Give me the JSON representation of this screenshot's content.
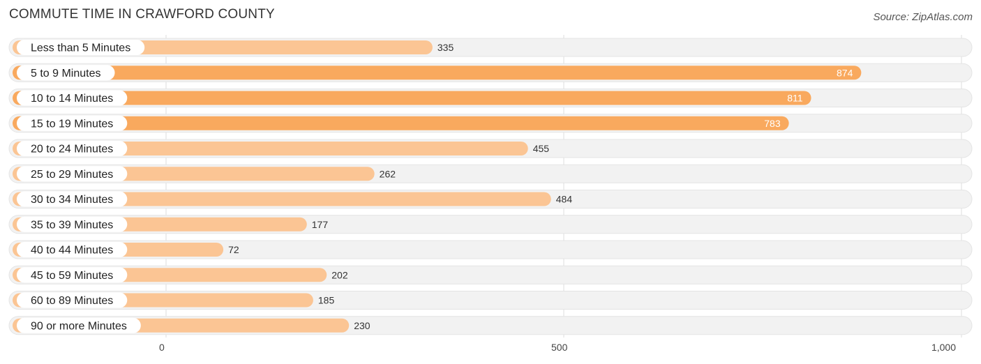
{
  "header": {
    "title": "COMMUTE TIME IN CRAWFORD COUNTY",
    "source": "Source: ZipAtlas.com"
  },
  "colors": {
    "bar_strong": "#f9a95e",
    "bar_light": "#fbc594",
    "row_background": "#f2f2f2",
    "grid": "#dddddd"
  },
  "chart_data": {
    "type": "bar",
    "orientation": "horizontal",
    "title": "COMMUTE TIME IN CRAWFORD COUNTY",
    "categories": [
      "Less than 5 Minutes",
      "5 to 9 Minutes",
      "10 to 14 Minutes",
      "15 to 19 Minutes",
      "20 to 24 Minutes",
      "25 to 29 Minutes",
      "30 to 34 Minutes",
      "35 to 39 Minutes",
      "40 to 44 Minutes",
      "45 to 59 Minutes",
      "60 to 89 Minutes",
      "90 or more Minutes"
    ],
    "values": [
      335,
      874,
      811,
      783,
      455,
      262,
      484,
      177,
      72,
      202,
      185,
      230
    ],
    "value_labels": [
      "335",
      "874",
      "811",
      "783",
      "455",
      "262",
      "484",
      "177",
      "72",
      "202",
      "185",
      "230"
    ],
    "xlim": [
      0,
      1000
    ],
    "ticks": [
      0,
      500,
      1000
    ],
    "tick_labels": [
      "0",
      "500",
      "1,000"
    ],
    "grid": true,
    "legend": "none"
  }
}
